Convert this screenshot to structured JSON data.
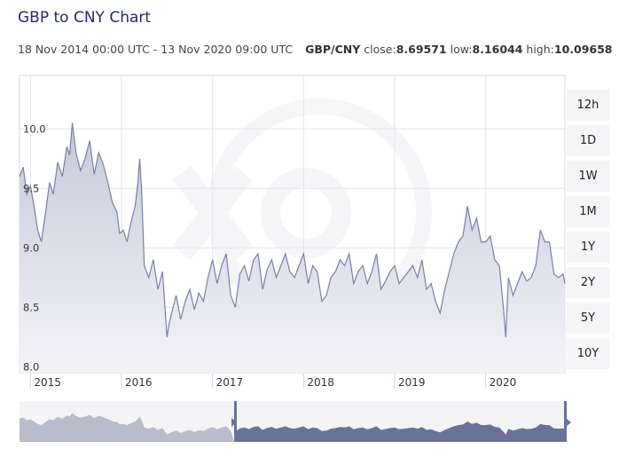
{
  "header": {
    "title": "GBP to CNY Chart",
    "range_text": "18 Nov 2014 00:00 UTC - 13 Nov 2020 09:00 UTC",
    "pair": "GBP/CNY",
    "close_label": "close:",
    "close_value": "8.69571",
    "low_label": "low:",
    "low_value": "8.16044",
    "high_label": "high:",
    "high_value": "10.09658"
  },
  "range_buttons": [
    "12h",
    "1D",
    "1W",
    "1M",
    "1Y",
    "2Y",
    "5Y",
    "10Y"
  ],
  "colors": {
    "line": "#7a7fa6",
    "fill_top": "#c9cbdc",
    "navigator_selected": "#6a7297",
    "navigator_unselected": "#b8bccb"
  },
  "chart_data": {
    "type": "area",
    "title": "GBP to CNY Chart",
    "xlabel": "",
    "ylabel": "",
    "y_ticks": [
      "8.0",
      "8.5",
      "9.0",
      "9.5",
      "10.0"
    ],
    "x_ticks": [
      "2015",
      "2016",
      "2017",
      "2018",
      "2019",
      "2020"
    ],
    "xlim": [
      2014.88,
      2020.87
    ],
    "ylim": [
      7.95,
      10.45
    ],
    "grid": true,
    "x": [
      2014.88,
      2014.92,
      2014.96,
      2015.0,
      2015.04,
      2015.08,
      2015.12,
      2015.17,
      2015.21,
      2015.25,
      2015.3,
      2015.35,
      2015.4,
      2015.43,
      2015.46,
      2015.5,
      2015.55,
      2015.6,
      2015.65,
      2015.7,
      2015.75,
      2015.8,
      2015.85,
      2015.9,
      2015.95,
      2015.98,
      2016.02,
      2016.06,
      2016.1,
      2016.15,
      2016.18,
      2016.2,
      2016.22,
      2016.25,
      2016.3,
      2016.35,
      2016.4,
      2016.45,
      2016.5,
      2016.52,
      2016.55,
      2016.6,
      2016.65,
      2016.7,
      2016.75,
      2016.8,
      2016.85,
      2016.9,
      2016.95,
      2017.0,
      2017.05,
      2017.1,
      2017.15,
      2017.2,
      2017.25,
      2017.3,
      2017.35,
      2017.4,
      2017.45,
      2017.5,
      2017.55,
      2017.6,
      2017.65,
      2017.7,
      2017.75,
      2017.8,
      2017.85,
      2017.9,
      2017.95,
      2018.0,
      2018.05,
      2018.1,
      2018.15,
      2018.2,
      2018.25,
      2018.3,
      2018.35,
      2018.4,
      2018.45,
      2018.5,
      2018.55,
      2018.6,
      2018.65,
      2018.7,
      2018.75,
      2018.8,
      2018.85,
      2018.9,
      2018.95,
      2019.0,
      2019.05,
      2019.1,
      2019.15,
      2019.2,
      2019.25,
      2019.3,
      2019.35,
      2019.4,
      2019.45,
      2019.5,
      2019.55,
      2019.6,
      2019.65,
      2019.7,
      2019.75,
      2019.8,
      2019.85,
      2019.9,
      2019.95,
      2020.0,
      2020.05,
      2020.1,
      2020.15,
      2020.2,
      2020.22,
      2020.25,
      2020.3,
      2020.35,
      2020.4,
      2020.45,
      2020.5,
      2020.55,
      2020.6,
      2020.65,
      2020.7,
      2020.75,
      2020.8,
      2020.85,
      2020.87
    ],
    "values": [
      9.6,
      9.68,
      9.45,
      9.52,
      9.35,
      9.15,
      9.05,
      9.32,
      9.55,
      9.45,
      9.72,
      9.6,
      9.85,
      9.78,
      10.05,
      9.8,
      9.65,
      9.75,
      9.9,
      9.62,
      9.8,
      9.7,
      9.55,
      9.38,
      9.3,
      9.12,
      9.15,
      9.05,
      9.2,
      9.35,
      9.55,
      9.75,
      9.5,
      8.85,
      8.75,
      8.9,
      8.65,
      8.8,
      8.25,
      8.35,
      8.45,
      8.6,
      8.4,
      8.55,
      8.65,
      8.48,
      8.62,
      8.55,
      8.75,
      8.9,
      8.7,
      8.85,
      8.95,
      8.6,
      8.5,
      8.78,
      8.85,
      8.72,
      8.9,
      8.95,
      8.65,
      8.82,
      8.9,
      8.75,
      8.85,
      8.95,
      8.8,
      8.75,
      8.85,
      8.95,
      8.7,
      8.85,
      8.8,
      8.55,
      8.6,
      8.75,
      8.8,
      8.9,
      8.85,
      8.95,
      8.7,
      8.8,
      8.85,
      8.7,
      8.8,
      8.95,
      8.65,
      8.72,
      8.8,
      8.85,
      8.7,
      8.75,
      8.8,
      8.85,
      8.75,
      8.9,
      8.65,
      8.7,
      8.55,
      8.45,
      8.65,
      8.8,
      8.95,
      9.05,
      9.1,
      9.35,
      9.15,
      9.25,
      9.05,
      9.05,
      9.1,
      8.9,
      8.85,
      8.45,
      8.25,
      8.75,
      8.6,
      8.7,
      8.8,
      8.72,
      8.75,
      8.85,
      9.15,
      9.05,
      9.05,
      8.78,
      8.75,
      8.78,
      8.7
    ]
  }
}
